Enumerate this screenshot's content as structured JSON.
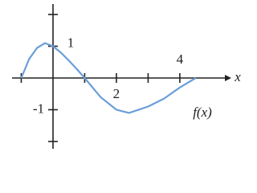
{
  "chart_data": {
    "type": "line",
    "x_label": "x",
    "annotation": "f(x)",
    "x": [
      -1,
      -0.75,
      -0.5,
      -0.25,
      0,
      0.25,
      0.5,
      0.75,
      1,
      1.5,
      2,
      2.4,
      3,
      3.5,
      4,
      4.5
    ],
    "series": [
      {
        "color": "#6a9fd8",
        "values": [
          0,
          0.6,
          0.95,
          1.1,
          1,
          0.8,
          0.55,
          0.28,
          0,
          -0.6,
          -1,
          -1.1,
          -0.9,
          -0.65,
          -0.3,
          0
        ]
      }
    ],
    "xlim": [
      -1.29,
      5.42
    ],
    "ylim": [
      -2.23,
      2.33
    ],
    "xticks": [
      {
        "value": -1,
        "label": null
      },
      {
        "value": 1,
        "label": null
      },
      2,
      {
        "value": 3,
        "label": null
      },
      4
    ],
    "yticks": [
      {
        "value": -2,
        "label": null
      },
      -1,
      1,
      {
        "value": 2,
        "label": null
      }
    ]
  }
}
